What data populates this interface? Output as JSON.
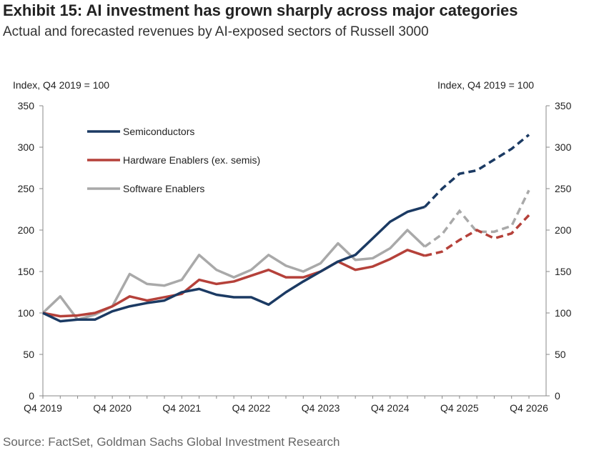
{
  "title": "Exhibit 15: AI investment has grown sharply across major categories",
  "subtitle": "Actual and forecasted revenues by AI-exposed sectors of Russell 3000",
  "source": "Source: FactSet, Goldman Sachs Global Investment Research",
  "chart_data": {
    "type": "line",
    "ylabel_left": "Index, Q4 2019 = 100",
    "ylabel_right": "Index, Q4 2019 = 100",
    "ylim": [
      0,
      350
    ],
    "yticks": [
      "0",
      "50",
      "100",
      "150",
      "200",
      "250",
      "300",
      "350"
    ],
    "xtick_labels": [
      "Q4 2019",
      "Q4 2020",
      "Q4 2021",
      "Q4 2022",
      "Q4 2023",
      "Q4 2024",
      "Q4 2025",
      "Q4 2026"
    ],
    "quarters_count": 29,
    "forecast_start_index": 22,
    "legend_position": "top-left",
    "series": [
      {
        "name": "Semiconductors",
        "color": "#1b3a63",
        "values": [
          100,
          90,
          92,
          92,
          102,
          108,
          112,
          115,
          125,
          129,
          122,
          119,
          119,
          110,
          125,
          138,
          150,
          162,
          170,
          190,
          210,
          222,
          228,
          250,
          268,
          272,
          285,
          298,
          315
        ]
      },
      {
        "name": "Hardware Enablers (ex. semis)",
        "color": "#b5413a",
        "values": [
          100,
          96,
          97,
          100,
          108,
          120,
          115,
          119,
          123,
          140,
          135,
          138,
          145,
          152,
          143,
          143,
          150,
          162,
          152,
          156,
          165,
          176,
          169,
          174,
          188,
          200,
          190,
          196,
          218
        ]
      },
      {
        "name": "Software Enablers",
        "color": "#a9a9a9",
        "values": [
          100,
          120,
          92,
          98,
          108,
          147,
          135,
          133,
          140,
          170,
          152,
          143,
          152,
          170,
          157,
          150,
          160,
          184,
          164,
          166,
          178,
          200,
          180,
          195,
          223,
          198,
          198,
          205,
          248
        ]
      }
    ]
  }
}
